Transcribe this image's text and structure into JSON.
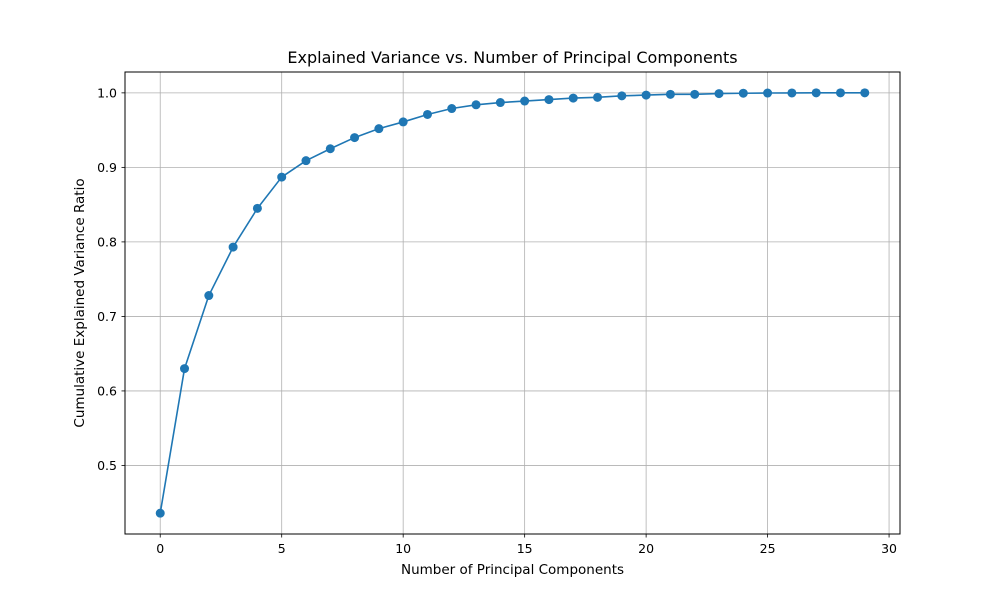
{
  "chart_data": {
    "type": "line",
    "title": "Explained Variance vs. Number of Principal Components",
    "xlabel": "Number of Principal Components",
    "ylabel": "Cumulative Explained Variance Ratio",
    "xlim": [
      -1.45,
      30.45
    ],
    "ylim": [
      0.408,
      1.028
    ],
    "xticks": [
      0,
      5,
      10,
      15,
      20,
      25,
      30
    ],
    "yticks": [
      0.5,
      0.6,
      0.7,
      0.8,
      0.9,
      1.0
    ],
    "xtick_labels": [
      "0",
      "5",
      "10",
      "15",
      "20",
      "25",
      "30"
    ],
    "ytick_labels": [
      "0.5",
      "0.6",
      "0.7",
      "0.8",
      "0.9",
      "1.0"
    ],
    "grid": true,
    "marker": "circle",
    "color": "#1f77b4",
    "series": [
      {
        "x": [
          0,
          1,
          2,
          3,
          4,
          5,
          6,
          7,
          8,
          9,
          10,
          11,
          12,
          13,
          14,
          15,
          16,
          17,
          18,
          19,
          20,
          21,
          22,
          23,
          24,
          25,
          26,
          27,
          28,
          29
        ],
        "values": [
          0.436,
          0.63,
          0.728,
          0.793,
          0.845,
          0.887,
          0.909,
          0.925,
          0.94,
          0.952,
          0.961,
          0.971,
          0.979,
          0.984,
          0.987,
          0.989,
          0.991,
          0.993,
          0.994,
          0.996,
          0.997,
          0.998,
          0.998,
          0.999,
          0.9995,
          0.9998,
          0.9999,
          1.0,
          1.0,
          1.0
        ]
      }
    ]
  }
}
